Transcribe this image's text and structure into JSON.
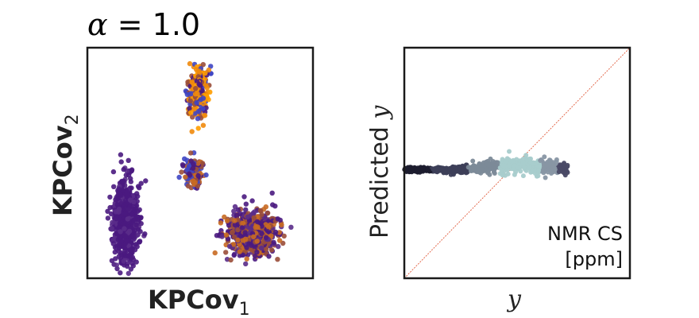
{
  "title": {
    "symbol": "α",
    "rest": " = 1.0"
  },
  "chart_data": [
    {
      "type": "scatter",
      "xlabel": {
        "main": "KPCov",
        "sub": "1"
      },
      "ylabel": {
        "main": "KPCov",
        "sub": "2"
      },
      "ticks": "none",
      "grid": false,
      "colormap": [
        "#4a1a80",
        "#5a2c8a",
        "#3f46c4",
        "#9a4e3a",
        "#c86a22",
        "#f08a0c",
        "#ff9d00"
      ],
      "clusters": [
        {
          "x": 0.17,
          "y": 0.25,
          "spread_x": 0.065,
          "spread_y": 0.2,
          "n": 650,
          "palette": [
            0,
            1
          ],
          "weights": [
            0.8,
            0.2
          ]
        },
        {
          "x": 0.73,
          "y": 0.2,
          "spread_x": 0.12,
          "spread_y": 0.11,
          "n": 700,
          "palette": [
            0,
            1,
            3,
            4
          ],
          "weights": [
            0.35,
            0.2,
            0.3,
            0.15
          ]
        },
        {
          "x": 0.47,
          "y": 0.46,
          "spread_x": 0.05,
          "spread_y": 0.065,
          "n": 160,
          "palette": [
            2,
            0,
            3,
            4
          ],
          "weights": [
            0.35,
            0.25,
            0.25,
            0.15
          ]
        },
        {
          "x": 0.49,
          "y": 0.82,
          "spread_x": 0.045,
          "spread_y": 0.13,
          "n": 280,
          "palette": [
            5,
            6,
            3,
            2,
            0
          ],
          "weights": [
            0.3,
            0.2,
            0.2,
            0.15,
            0.15
          ]
        }
      ]
    },
    {
      "type": "scatter",
      "xlabel": "y",
      "ylabel": {
        "main": "Predicted ",
        "var": "y"
      },
      "ticks": "none",
      "grid": false,
      "annotation": [
        "NMR CS",
        "[ppm]"
      ],
      "diagonal": {
        "color": "#e05a3a",
        "style": "dashed"
      },
      "colormap": [
        "#1c1c2e",
        "#3d3f58",
        "#7c8a98",
        "#a8cccc",
        "#8896a4",
        "#4a4a66"
      ],
      "band": {
        "y": 0.47,
        "x_start": 0.0,
        "x_end": 0.73,
        "peak_x": 0.52,
        "thickness": 0.02,
        "n": 700
      }
    }
  ]
}
